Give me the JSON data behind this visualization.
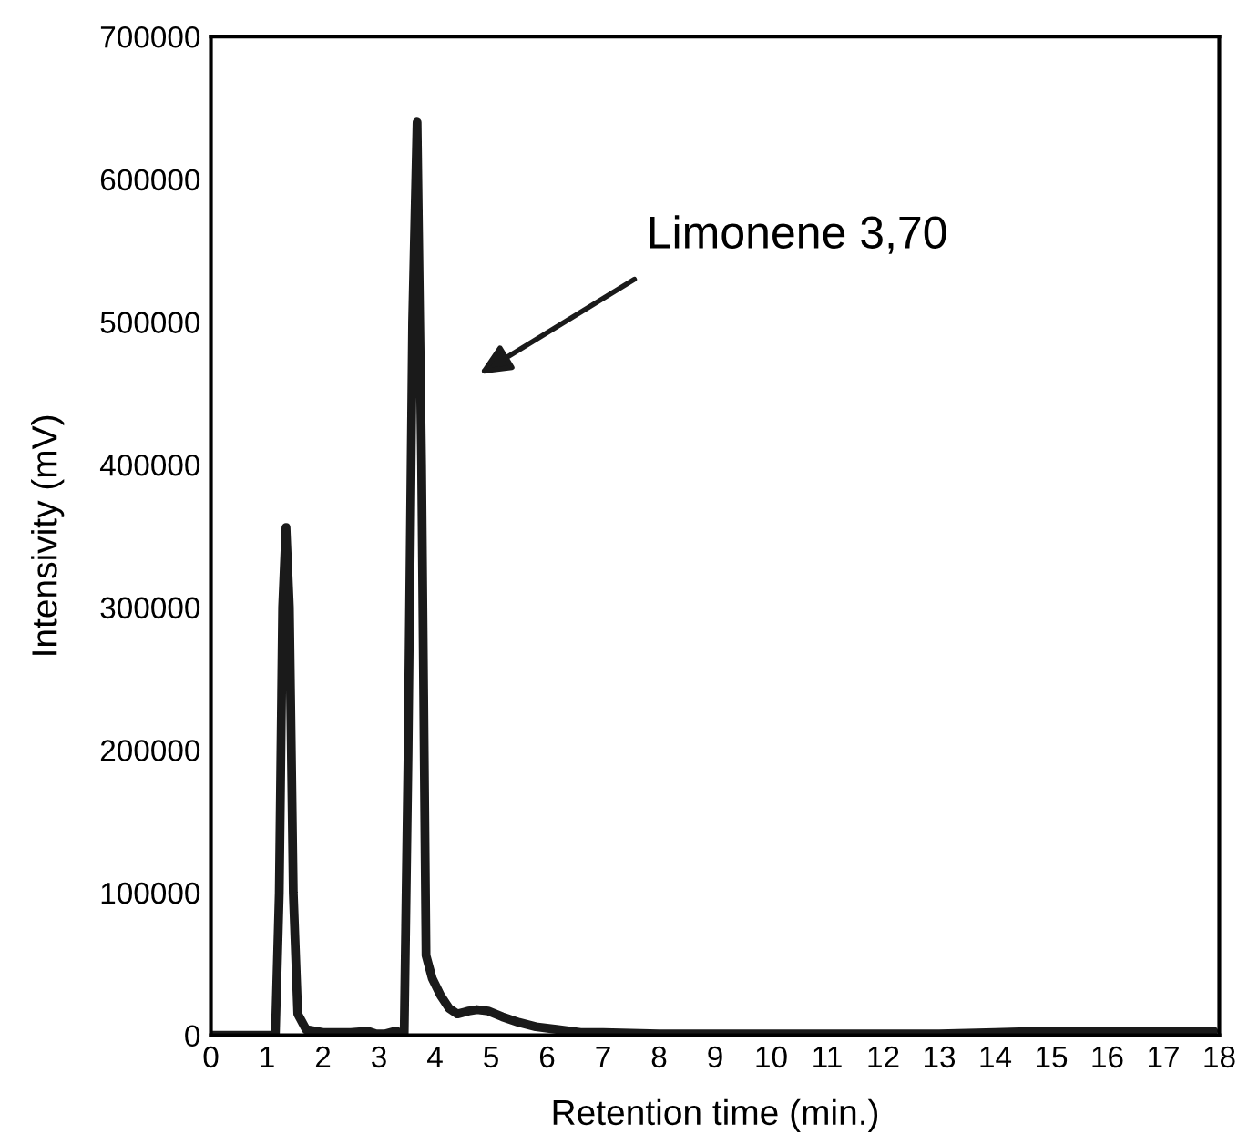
{
  "chart_data": {
    "type": "line",
    "xlabel": "Retention time (min.)",
    "ylabel": "Intensivity (mV)",
    "x": [
      0,
      1.15,
      1.22,
      1.28,
      1.34,
      1.4,
      1.47,
      1.55,
      1.7,
      2.0,
      2.5,
      2.8,
      2.95,
      3.1,
      3.3,
      3.45,
      3.52,
      3.6,
      3.68,
      3.76,
      3.84,
      3.95,
      4.1,
      4.25,
      4.4,
      4.6,
      4.75,
      4.95,
      5.2,
      5.5,
      5.8,
      6.2,
      6.6,
      7,
      8,
      9,
      10,
      11,
      12,
      13,
      14,
      15,
      16,
      17,
      17.9
    ],
    "series": [
      {
        "color": "#1a1a1a",
        "values": [
          0,
          0,
          100000,
          300000,
          356000,
          300000,
          100000,
          15000,
          4000,
          2000,
          2000,
          3000,
          1000,
          1000,
          3000,
          1000,
          200000,
          500000,
          640000,
          400000,
          56000,
          40000,
          28000,
          19000,
          15000,
          17000,
          18000,
          17000,
          13000,
          9000,
          6000,
          4000,
          2000,
          2000,
          1000,
          1000,
          1000,
          1000,
          1000,
          1000,
          2000,
          3000,
          3000,
          3000,
          3000
        ]
      }
    ],
    "xlim": [
      0,
      18
    ],
    "xticks": [
      0,
      1,
      2,
      3,
      4,
      5,
      6,
      7,
      8,
      9,
      10,
      11,
      12,
      13,
      14,
      15,
      16,
      17,
      18
    ],
    "ylim": [
      0,
      700000
    ],
    "yticks": [
      0,
      100000,
      200000,
      300000,
      400000,
      500000,
      600000,
      700000
    ],
    "grid": false,
    "legend": false,
    "marker": "none",
    "line_style": "solid",
    "annotations": [
      "Limonene 3,70"
    ]
  }
}
